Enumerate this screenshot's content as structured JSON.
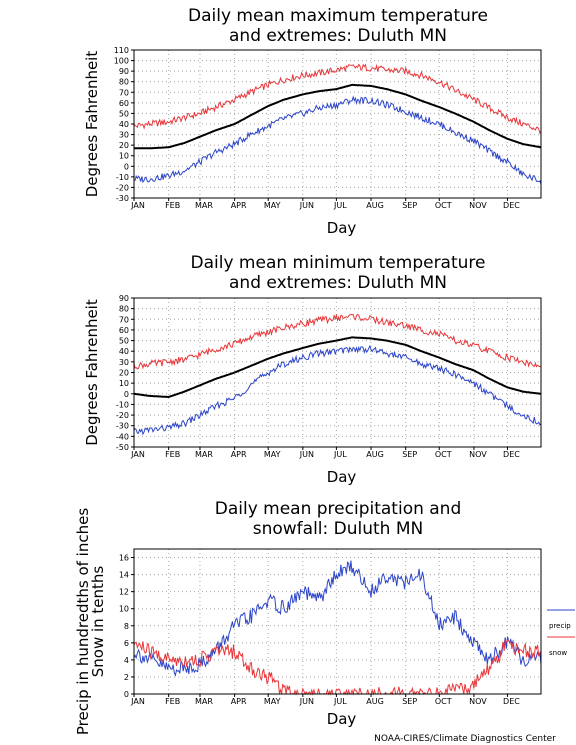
{
  "credit": "NOAA-CIRES/Climate Diagnostics Center",
  "colors": {
    "max_extreme": "#e8373a",
    "mean": "#000000",
    "min_extreme": "#2d45c8",
    "grid": "#a8a8a8"
  },
  "chart_data": [
    {
      "type": "line",
      "title": [
        "Daily mean maximum temperature",
        "and extremes: Duluth MN"
      ],
      "xlabel": "Day",
      "ylabel": "Degrees Fahrenheit",
      "ylim": [
        -30,
        110
      ],
      "yticks": [
        -30,
        -20,
        -10,
        0,
        10,
        20,
        30,
        40,
        50,
        60,
        70,
        80,
        90,
        100,
        110
      ],
      "ytick_labels": [
        "-30",
        "-20",
        "-10",
        "0",
        "10",
        "20",
        "30",
        "40",
        "50",
        "60",
        "70",
        "80",
        "90",
        "100",
        "110"
      ],
      "x_tick_labels": [
        "JAN",
        "FEB",
        "MAR",
        "APR",
        "MAY",
        "JUN",
        "JUL",
        "AUG",
        "SEP",
        "OCT",
        "NOV",
        "DEC"
      ],
      "x_ticks_day": [
        1,
        32,
        60,
        91,
        121,
        152,
        182,
        213,
        244,
        274,
        305,
        335
      ],
      "x_days": [
        1,
        15,
        32,
        46,
        60,
        74,
        91,
        105,
        121,
        135,
        152,
        166,
        182,
        196,
        213,
        227,
        244,
        258,
        274,
        288,
        305,
        319,
        335,
        349,
        365
      ],
      "grid": true,
      "series": [
        {
          "key": "max_extreme",
          "values": [
            38,
            40,
            42,
            46,
            50,
            56,
            63,
            70,
            77,
            82,
            86,
            88,
            91,
            94,
            93,
            91,
            90,
            86,
            80,
            72,
            63,
            55,
            46,
            40,
            34
          ]
        },
        {
          "key": "mean",
          "values": [
            17,
            17,
            18,
            22,
            28,
            34,
            40,
            48,
            57,
            63,
            68,
            71,
            73,
            77,
            76,
            73,
            68,
            62,
            56,
            50,
            42,
            34,
            26,
            21,
            18
          ]
        },
        {
          "key": "min_extreme",
          "values": [
            -12,
            -12,
            -9,
            -4,
            4,
            13,
            21,
            30,
            38,
            45,
            50,
            55,
            58,
            63,
            62,
            58,
            52,
            46,
            40,
            32,
            24,
            14,
            4,
            -8,
            -14
          ]
        }
      ]
    },
    {
      "type": "line",
      "title": [
        "Daily mean minimum temperature",
        "and extremes: Duluth MN"
      ],
      "xlabel": "Day",
      "ylabel": "Degrees Fahrenheit",
      "ylim": [
        -50,
        90
      ],
      "yticks": [
        -50,
        -40,
        -30,
        -20,
        -10,
        0,
        10,
        20,
        30,
        40,
        50,
        60,
        70,
        80,
        90
      ],
      "ytick_labels": [
        "-50",
        "-40",
        "-30",
        "-20",
        "-10",
        "0",
        "10",
        "20",
        "30",
        "40",
        "50",
        "60",
        "70",
        "80",
        "90"
      ],
      "x_tick_labels": [
        "JAN",
        "FEB",
        "MAR",
        "APR",
        "MAY",
        "JUN",
        "JUL",
        "AUG",
        "SEP",
        "OCT",
        "NOV",
        "DEC"
      ],
      "x_ticks_day": [
        1,
        32,
        60,
        91,
        121,
        152,
        182,
        213,
        244,
        274,
        305,
        335
      ],
      "x_days": [
        1,
        15,
        32,
        46,
        60,
        74,
        91,
        105,
        121,
        135,
        152,
        166,
        182,
        196,
        213,
        227,
        244,
        258,
        274,
        288,
        305,
        319,
        335,
        349,
        365
      ],
      "grid": true,
      "series": [
        {
          "key": "max_extreme",
          "values": [
            26,
            28,
            30,
            32,
            37,
            42,
            47,
            53,
            58,
            62,
            66,
            69,
            71,
            73,
            70,
            67,
            64,
            60,
            56,
            50,
            45,
            40,
            34,
            30,
            25
          ]
        },
        {
          "key": "mean",
          "values": [
            0,
            -2,
            -3,
            2,
            8,
            14,
            20,
            26,
            33,
            38,
            43,
            47,
            50,
            53,
            52,
            50,
            46,
            40,
            34,
            28,
            22,
            14,
            6,
            2,
            0
          ]
        },
        {
          "key": "min_extreme",
          "values": [
            -36,
            -34,
            -32,
            -28,
            -20,
            -12,
            -4,
            8,
            20,
            28,
            34,
            38,
            40,
            42,
            42,
            38,
            34,
            28,
            24,
            18,
            10,
            0,
            -12,
            -20,
            -28
          ]
        }
      ]
    },
    {
      "type": "line",
      "title": [
        "Daily mean precipitation and",
        "snowfall: Duluth MN"
      ],
      "xlabel": "Day",
      "ylabel": [
        "Precip in hundredths of inches",
        "Snow in tenths"
      ],
      "ylim": [
        0,
        17
      ],
      "yticks": [
        0,
        2,
        4,
        6,
        8,
        10,
        12,
        14,
        16
      ],
      "ytick_labels": [
        "0",
        "2",
        "4",
        "6",
        "8",
        "10",
        "12",
        "14",
        "16"
      ],
      "x_tick_labels": [
        "JAN",
        "FEB",
        "MAR",
        "APR",
        "MAY",
        "JUN",
        "JUL",
        "AUG",
        "SEP",
        "OCT",
        "NOV",
        "DEC"
      ],
      "x_ticks_day": [
        1,
        32,
        60,
        91,
        121,
        152,
        182,
        213,
        244,
        274,
        305,
        335
      ],
      "x_days": [
        1,
        15,
        32,
        46,
        60,
        74,
        91,
        105,
        121,
        135,
        152,
        166,
        182,
        196,
        213,
        227,
        244,
        258,
        274,
        288,
        305,
        319,
        335,
        349,
        365
      ],
      "grid": true,
      "legend": [
        "precip",
        "snow"
      ],
      "legend_position": "right",
      "series": [
        {
          "key": "precip",
          "name": "precip",
          "values": [
            5,
            4,
            3,
            3,
            3.5,
            5,
            8,
            9,
            11,
            10,
            12,
            11,
            14,
            15,
            12,
            14,
            13,
            14,
            8,
            9,
            6,
            4,
            6,
            4,
            4
          ]
        },
        {
          "key": "snow",
          "name": "snow",
          "values": [
            6,
            5,
            4,
            4,
            4,
            5,
            5,
            3,
            2,
            0.5,
            0,
            0,
            0,
            0,
            0,
            0,
            0,
            0,
            0,
            0.3,
            1,
            3,
            6,
            5,
            5
          ]
        }
      ]
    }
  ]
}
